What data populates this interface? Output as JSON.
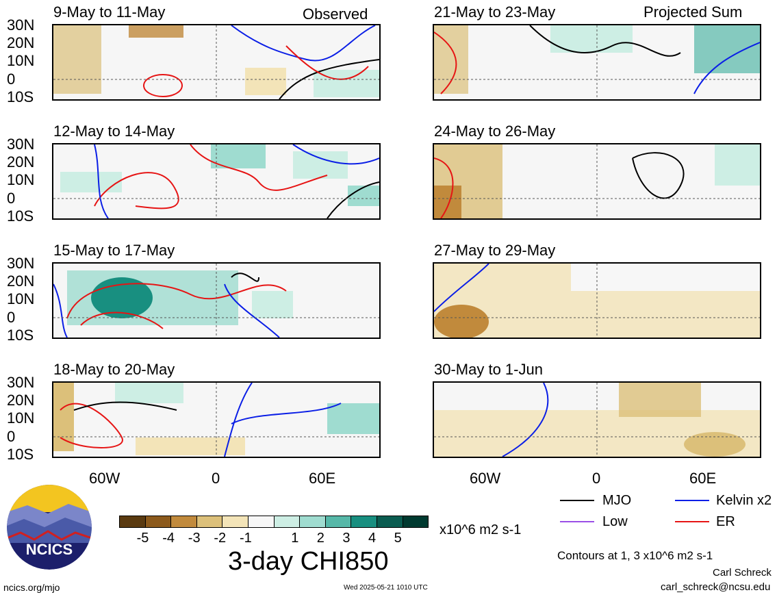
{
  "panels_observed": [
    {
      "title": "9-May to 11-May"
    },
    {
      "title": "12-May to 14-May"
    },
    {
      "title": "15-May to 17-May"
    },
    {
      "title": "18-May to 20-May"
    }
  ],
  "panels_projected": [
    {
      "title": "21-May to 23-May"
    },
    {
      "title": "24-May to 26-May"
    },
    {
      "title": "27-May to 29-May"
    },
    {
      "title": "30-May to 1-Jun"
    }
  ],
  "observed_label": "Observed",
  "projected_label": "Projected Sum",
  "lat_labels": [
    "30N",
    "20N",
    "10N",
    "0",
    "10S"
  ],
  "lon_labels": [
    "60W",
    "0",
    "60E"
  ],
  "colorbar": {
    "colors": [
      "#5a3a10",
      "#8c5a1c",
      "#c18a3c",
      "#dcc07a",
      "#f3e4b8",
      "#f7f7f7",
      "#cdeee4",
      "#9fdcd0",
      "#56b8a8",
      "#188f80",
      "#0a5c50",
      "#003a30"
    ],
    "ticks": [
      "-5",
      "-4",
      "-3",
      "-2",
      "-1",
      "1",
      "2",
      "3",
      "4",
      "5"
    ],
    "units": "x10^6 m2 s-1"
  },
  "main_title": "3-day CHI850",
  "legend": {
    "mjo": {
      "label": "MJO",
      "color": "#000000"
    },
    "kelvin": {
      "label": "Kelvin x2",
      "color": "#0a1ee6"
    },
    "low": {
      "label": "Low",
      "color": "#9a4ee6"
    },
    "er": {
      "label": "ER",
      "color": "#e61414"
    }
  },
  "contours_note": "Contours at 1, 3 x10^6 m2 s-1",
  "author": "Carl Schreck",
  "email": "carl_schreck@ncsu.edu",
  "url": "ncics.org/mjo",
  "timestamp": "Wed 2025-05-21 1010 UTC",
  "logo_text": "NCICS"
}
